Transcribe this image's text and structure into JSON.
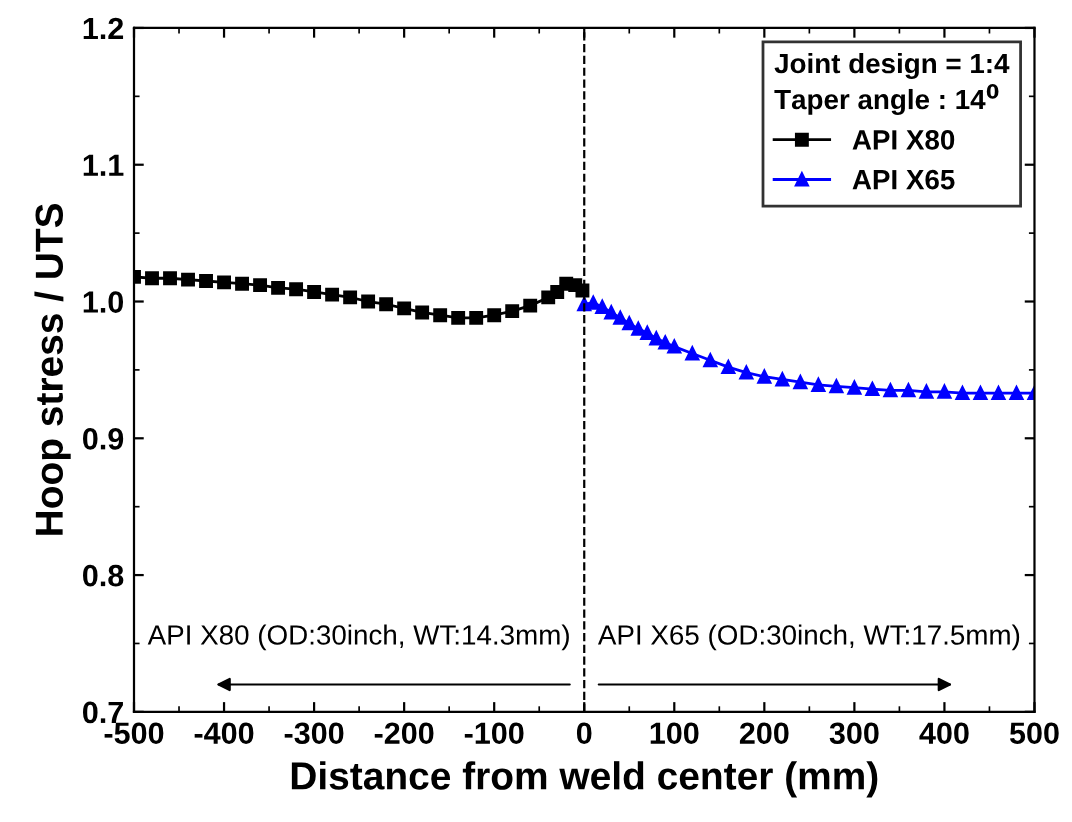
{
  "chart_data": {
    "type": "line",
    "xlabel": "Distance from weld center (mm)",
    "ylabel": "Hoop stress / UTS",
    "legend_title": "Joint design = 1:4\nTaper angle : 14$^{0}$",
    "series": [
      {
        "name": "API X80",
        "color": "#000000",
        "marker": "square",
        "x": [
          -500,
          -480,
          -460,
          -440,
          -420,
          -400,
          -380,
          -360,
          -340,
          -320,
          -300,
          -280,
          -260,
          -240,
          -220,
          -200,
          -180,
          -160,
          -140,
          -120,
          -100,
          -80,
          -60,
          -40,
          -30,
          -20,
          -10,
          -2
        ],
        "values": [
          1.018,
          1.017,
          1.017,
          1.016,
          1.015,
          1.014,
          1.013,
          1.012,
          1.01,
          1.009,
          1.007,
          1.005,
          1.003,
          1.0,
          0.998,
          0.995,
          0.992,
          0.99,
          0.988,
          0.988,
          0.99,
          0.993,
          0.997,
          1.003,
          1.007,
          1.013,
          1.012,
          1.008
        ]
      },
      {
        "name": "API X65",
        "color": "#0000ff",
        "marker": "triangle",
        "x": [
          0,
          10,
          20,
          30,
          40,
          50,
          60,
          70,
          80,
          90,
          100,
          120,
          140,
          160,
          180,
          200,
          220,
          240,
          260,
          280,
          300,
          320,
          340,
          360,
          380,
          400,
          420,
          440,
          460,
          480,
          500
        ],
        "values": [
          0.998,
          0.999,
          0.996,
          0.992,
          0.988,
          0.984,
          0.98,
          0.977,
          0.973,
          0.97,
          0.967,
          0.962,
          0.957,
          0.952,
          0.948,
          0.945,
          0.943,
          0.941,
          0.939,
          0.938,
          0.937,
          0.936,
          0.935,
          0.935,
          0.934,
          0.934,
          0.933,
          0.933,
          0.933,
          0.933,
          0.933
        ]
      }
    ],
    "xlim": [
      -500,
      500
    ],
    "xticks": [
      -500,
      -400,
      -300,
      -200,
      -100,
      0,
      100,
      200,
      300,
      400,
      500
    ],
    "ylim": [
      0.7,
      1.2
    ],
    "yticks": [
      0.7,
      0.8,
      0.9,
      {
        "value": 1.0,
        "label": "1.0"
      },
      1.1,
      1.2
    ],
    "ref_lines": [
      {
        "axis": "x",
        "value": 0,
        "color": "#000000",
        "line_style": "dashed"
      }
    ],
    "annotations": [
      "API X80 (OD:30inch, WT:14.3mm)",
      "API X65 (OD:30inch, WT:17.5mm)"
    ],
    "line_style": "solid",
    "grid": false,
    "legend": "top right"
  }
}
